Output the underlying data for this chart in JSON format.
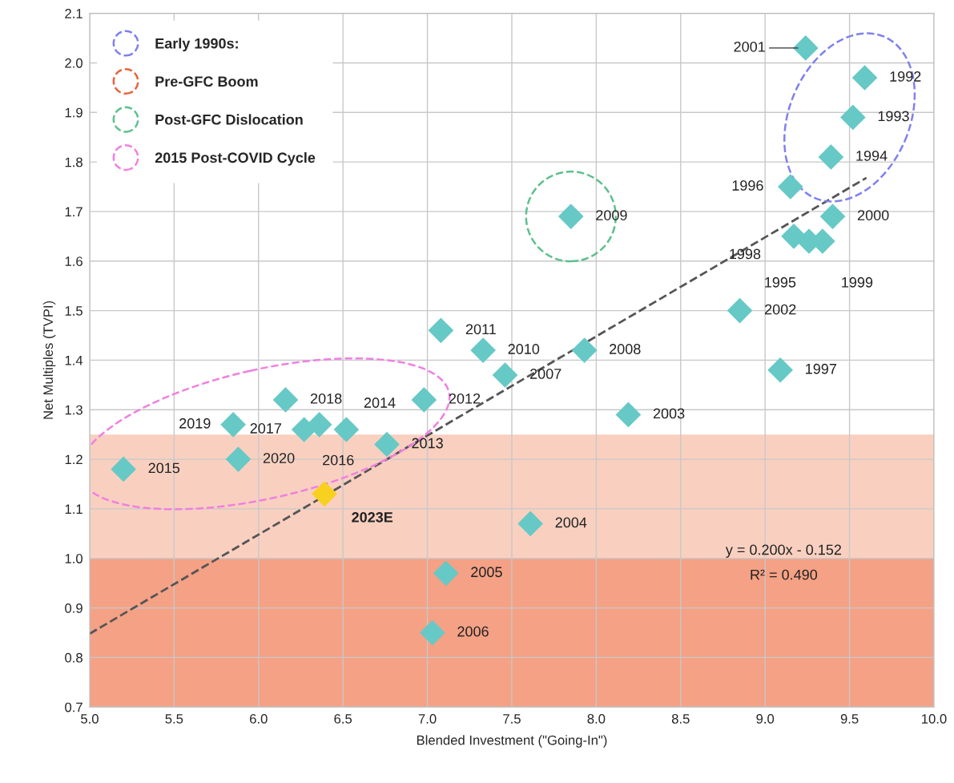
{
  "chart_data": {
    "type": "scatter",
    "xlabel": "Blended Investment (\"Going-In\")",
    "ylabel": "Net Multiples (TVPI)",
    "xlim": [
      5.0,
      10.0
    ],
    "ylim": [
      0.7,
      2.1
    ],
    "xticks": [
      {
        "value": 5,
        "label": "5.0"
      },
      5.5,
      {
        "value": 6,
        "label": "6.0"
      },
      6.5,
      {
        "value": 7,
        "label": "7.0"
      },
      7.5,
      {
        "value": 8,
        "label": "8.0"
      },
      8.5,
      {
        "value": 9,
        "label": "9.0"
      },
      9.5,
      {
        "value": 10,
        "label": "10.0"
      }
    ],
    "yticks": [
      0.7,
      0.8,
      0.9,
      {
        "value": 1,
        "label": "1.0"
      },
      1.1,
      1.2,
      1.3,
      1.4,
      1.5,
      1.6,
      1.7,
      1.8,
      1.9,
      {
        "value": 2,
        "label": "2.0"
      },
      2.1
    ],
    "grid": true,
    "legend": "top left",
    "bands": [
      {
        "axis": "y",
        "from": 0.7,
        "to": 1.0,
        "color": "#f4a185"
      },
      {
        "axis": "y",
        "from": 1.0,
        "to": 1.25,
        "color": "#f9d0c0"
      }
    ],
    "annotations": [
      {
        "text": "1992",
        "x": 9.59,
        "y": 1.97
      },
      {
        "text": "1993",
        "x": 9.52,
        "y": 1.89
      },
      {
        "text": "1994",
        "x": 9.39,
        "y": 1.81
      },
      {
        "text": "1995",
        "x": 9.26,
        "y": 1.64
      },
      {
        "text": "1996",
        "x": 9.15,
        "y": 1.75
      },
      {
        "text": "1997",
        "x": 9.09,
        "y": 1.38
      },
      {
        "text": "1998",
        "x": 9.17,
        "y": 1.65
      },
      {
        "text": "1999",
        "x": 9.34,
        "y": 1.64
      },
      {
        "text": "2000",
        "x": 9.4,
        "y": 1.69
      },
      {
        "text": "2001",
        "x": 9.24,
        "y": 2.03
      },
      {
        "text": "2002",
        "x": 8.85,
        "y": 1.5
      },
      {
        "text": "2003",
        "x": 8.19,
        "y": 1.29
      },
      {
        "text": "2004",
        "x": 7.61,
        "y": 1.07
      },
      {
        "text": "2005",
        "x": 7.11,
        "y": 0.97
      },
      {
        "text": "2006",
        "x": 7.03,
        "y": 0.85
      },
      {
        "text": "2007",
        "x": 7.46,
        "y": 1.37
      },
      {
        "text": "2008",
        "x": 7.93,
        "y": 1.42
      },
      {
        "text": "2009",
        "x": 7.85,
        "y": 1.69
      },
      {
        "text": "2010",
        "x": 7.33,
        "y": 1.42
      },
      {
        "text": "2011",
        "x": 7.08,
        "y": 1.46
      },
      {
        "text": "2012",
        "x": 6.98,
        "y": 1.32
      },
      {
        "text": "2013",
        "x": 6.76,
        "y": 1.23
      },
      {
        "text": "2014",
        "x": 6.52,
        "y": 1.26
      },
      {
        "text": "2015",
        "x": 5.2,
        "y": 1.18
      },
      {
        "text": "2016",
        "x": 6.36,
        "y": 1.27
      },
      {
        "text": "2017",
        "x": 6.27,
        "y": 1.26
      },
      {
        "text": "2018",
        "x": 6.16,
        "y": 1.32
      },
      {
        "text": "2019",
        "x": 5.85,
        "y": 1.27
      },
      {
        "text": "2020",
        "x": 5.88,
        "y": 1.2
      },
      {
        "text": "2023E",
        "x": 6.39,
        "y": 1.13
      },
      "y = 0.200x - 0.152",
      "R² = 0.490"
    ],
    "series": [
      {
        "color": "#66c9c6",
        "marker": "diamond",
        "x": [
          9.59,
          9.52,
          9.39,
          9.26,
          9.15,
          9.09,
          9.17,
          9.34,
          9.4,
          9.24,
          8.85,
          8.19,
          7.61,
          7.11,
          7.03,
          7.46,
          7.93,
          7.85,
          7.33,
          7.08,
          6.98,
          6.76,
          6.52,
          5.2,
          6.36,
          6.27,
          6.16,
          5.85,
          5.88
        ],
        "values": [
          1.97,
          1.89,
          1.81,
          1.64,
          1.75,
          1.38,
          1.65,
          1.64,
          1.69,
          2.03,
          1.5,
          1.29,
          1.07,
          0.97,
          0.85,
          1.37,
          1.42,
          1.69,
          1.42,
          1.46,
          1.32,
          1.23,
          1.26,
          1.18,
          1.27,
          1.26,
          1.32,
          1.27,
          1.2
        ]
      },
      {
        "color": "#f8d020",
        "marker": "diamond",
        "x": [
          6.39
        ],
        "values": [
          1.13
        ]
      },
      {
        "type": "line",
        "color": "#555555",
        "line_style": "dashed",
        "x": [
          5.0,
          9.6
        ],
        "values": [
          0.848,
          1.768
        ]
      },
      {
        "type": "other",
        "name": "Early 1990s:",
        "color": "#8080f0",
        "line_style": "dashed"
      },
      {
        "type": "other",
        "name": "Pre-GFC Boom",
        "color": "#e8643c",
        "line_style": "dashed"
      },
      {
        "type": "other",
        "name": "Post-GFC Dislocation",
        "color": "#5cc08c",
        "line_style": "dashed"
      },
      {
        "type": "other",
        "name": "2015 Post-COVID Cycle",
        "color": "#f080e0",
        "line_style": "dashed"
      }
    ]
  }
}
